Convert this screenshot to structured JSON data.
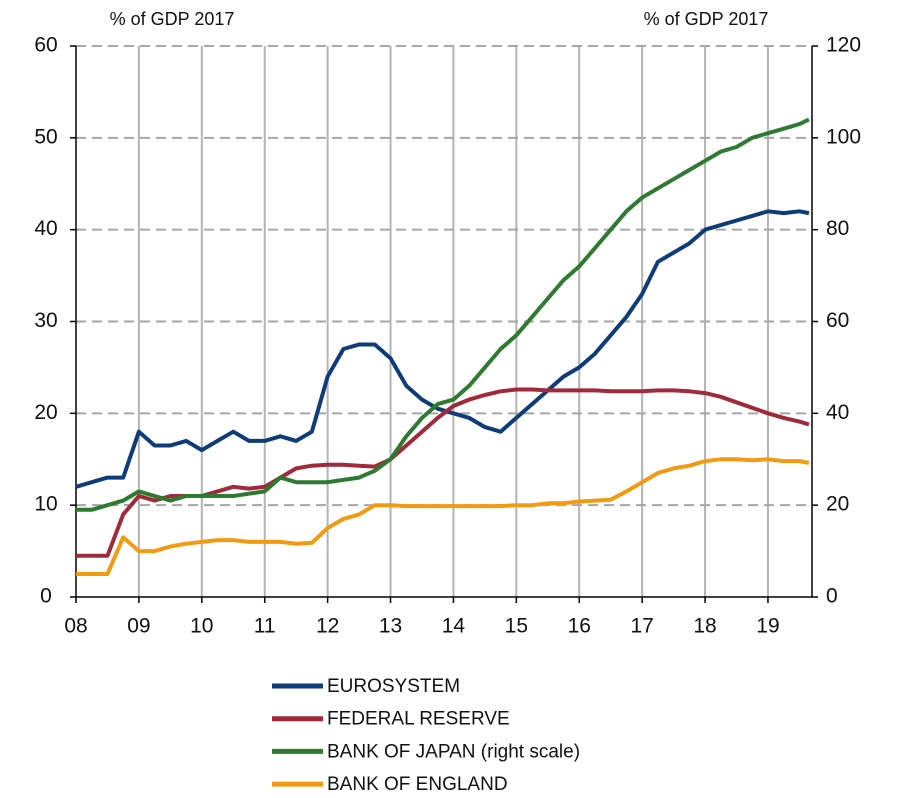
{
  "chart_data": {
    "type": "line",
    "y_label": "% of GDP 2017",
    "y2_label": "% of GDP 2017",
    "x": [
      2008,
      2008.25,
      2008.5,
      2008.75,
      2009,
      2009.25,
      2009.5,
      2009.75,
      2010,
      2010.25,
      2010.5,
      2010.75,
      2011,
      2011.25,
      2011.5,
      2011.75,
      2012,
      2012.25,
      2012.5,
      2012.75,
      2013,
      2013.25,
      2013.5,
      2013.75,
      2014,
      2014.25,
      2014.5,
      2014.75,
      2015,
      2015.25,
      2015.5,
      2015.75,
      2016,
      2016.25,
      2016.5,
      2016.75,
      2017,
      2017.25,
      2017.5,
      2017.75,
      2018,
      2018.25,
      2018.5,
      2018.75,
      2019,
      2019.25,
      2019.5,
      2019.65
    ],
    "series": [
      {
        "name": "EUROSYSTEM",
        "color": "#0e3c78",
        "values": [
          12,
          12.5,
          13,
          13,
          18,
          16.5,
          16.5,
          17,
          16,
          17,
          18,
          17,
          17,
          17.5,
          17,
          18,
          24,
          27,
          27.5,
          27.5,
          26,
          23,
          21.5,
          20.5,
          20,
          19.5,
          18.5,
          18,
          19.5,
          21,
          22.5,
          24,
          25,
          26.5,
          28.5,
          30.5,
          33,
          36.5,
          37.5,
          38.5,
          40,
          40.5,
          41,
          41.5,
          42,
          41.8,
          42,
          41.8
        ]
      },
      {
        "name": "FEDERAL RESERVE",
        "color": "#a12a3a",
        "values": [
          4.5,
          4.5,
          4.5,
          9,
          11,
          10.5,
          11,
          11,
          11,
          11.5,
          12,
          11.8,
          12,
          13,
          14,
          14.3,
          14.4,
          14.4,
          14.3,
          14.2,
          15,
          16.5,
          18,
          19.5,
          20.8,
          21.5,
          22,
          22.4,
          22.6,
          22.6,
          22.5,
          22.5,
          22.5,
          22.5,
          22.4,
          22.4,
          22.4,
          22.5,
          22.5,
          22.4,
          22.2,
          21.8,
          21.2,
          20.6,
          20,
          19.5,
          19.1,
          18.8
        ]
      },
      {
        "name": "BANK OF JAPAN (right scale)",
        "color": "#2e7a30",
        "axis": "y2",
        "values": [
          19,
          19,
          20,
          21,
          23,
          22,
          21,
          22,
          22,
          22,
          22,
          22.5,
          23,
          26,
          25,
          25,
          25,
          25.5,
          26,
          27.5,
          30,
          35,
          39,
          42,
          43,
          46,
          50,
          54,
          57,
          61,
          65,
          69,
          72,
          76,
          80,
          84,
          87,
          89,
          91,
          93,
          95,
          97,
          98,
          100,
          101,
          102,
          103,
          104
        ]
      },
      {
        "name": "BANK OF ENGLAND",
        "color": "#f29a12",
        "values": [
          2.5,
          2.5,
          2.5,
          6.5,
          5,
          5,
          5.5,
          5.8,
          6,
          6.2,
          6.2,
          6,
          6,
          6,
          5.8,
          5.9,
          7.5,
          8.5,
          9,
          10,
          10,
          9.9,
          9.9,
          9.9,
          9.9,
          9.9,
          9.9,
          9.9,
          10,
          10,
          10.2,
          10.2,
          10.4,
          10.5,
          10.6,
          11.5,
          12.5,
          13.5,
          14,
          14.3,
          14.8,
          15,
          15,
          14.9,
          15,
          14.8,
          14.8,
          14.6
        ]
      }
    ],
    "xlim": [
      2008,
      2019.7
    ],
    "xticks": [
      {
        "value": 2008,
        "label": "08"
      },
      {
        "value": 2009,
        "label": "09"
      },
      {
        "value": 2010,
        "label": "10"
      },
      {
        "value": 2011,
        "label": "11"
      },
      {
        "value": 2012,
        "label": "12"
      },
      {
        "value": 2013,
        "label": "13"
      },
      {
        "value": 2014,
        "label": "14"
      },
      {
        "value": 2015,
        "label": "15"
      },
      {
        "value": 2016,
        "label": "16"
      },
      {
        "value": 2017,
        "label": "17"
      },
      {
        "value": 2018,
        "label": "18"
      },
      {
        "value": 2019,
        "label": "19"
      }
    ],
    "ylim": [
      0,
      60
    ],
    "yticks": [
      0,
      10,
      20,
      30,
      40,
      50,
      60
    ],
    "y2lim": [
      0,
      120
    ],
    "y2ticks": [
      0,
      20,
      40,
      60,
      80,
      100,
      120
    ],
    "grid": true
  }
}
